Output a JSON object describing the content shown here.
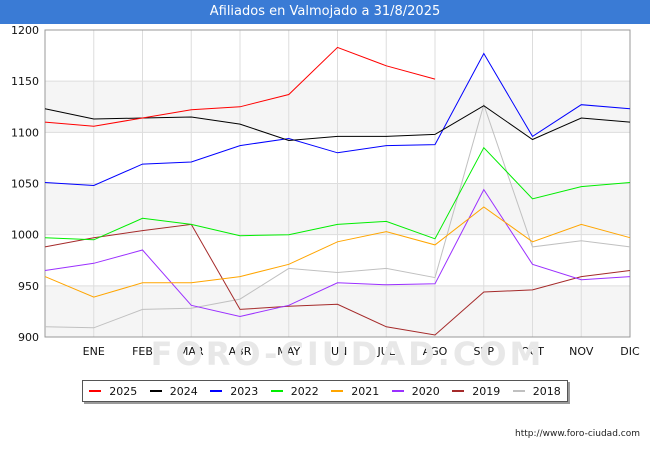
{
  "title": "Afiliados en Valmojado a 31/8/2025",
  "source": "http://www.foro-ciudad.com",
  "watermark": "FORO-CIUDAD.COM",
  "chart_data": {
    "type": "line",
    "categories": [
      "",
      "ENE",
      "FEB",
      "MAR",
      "ABR",
      "MAY",
      "JUN",
      "JUL",
      "AGO",
      "SEP",
      "OCT",
      "NOV",
      "DIC"
    ],
    "ylim": [
      900,
      1200
    ],
    "yticks": [
      900,
      950,
      1000,
      1050,
      1100,
      1150,
      1200
    ],
    "grid": true,
    "legend_position": "bottom",
    "series": [
      {
        "name": "2025",
        "color": "#ff0000",
        "values": [
          1110,
          1106,
          1114,
          1122,
          1125,
          1137,
          1183,
          1165,
          1152,
          null,
          null,
          null,
          null
        ]
      },
      {
        "name": "2024",
        "color": "#000000",
        "values": [
          1123,
          1113,
          1114,
          1115,
          1108,
          1092,
          1096,
          1096,
          1098,
          1126,
          1093,
          1114,
          1110
        ]
      },
      {
        "name": "2023",
        "color": "#0000ff",
        "values": [
          1051,
          1048,
          1069,
          1071,
          1087,
          1094,
          1080,
          1087,
          1088,
          1177,
          1096,
          1127,
          1123
        ]
      },
      {
        "name": "2022",
        "color": "#00ee00",
        "values": [
          997,
          995,
          1016,
          1010,
          999,
          1000,
          1010,
          1013,
          996,
          1085,
          1035,
          1047,
          1051
        ]
      },
      {
        "name": "2021",
        "color": "#ffa500",
        "values": [
          959,
          939,
          953,
          953,
          959,
          971,
          993,
          1003,
          990,
          1027,
          993,
          1010,
          997
        ]
      },
      {
        "name": "2020",
        "color": "#9b30ff",
        "values": [
          965,
          972,
          985,
          931,
          920,
          931,
          953,
          951,
          952,
          1044,
          971,
          956,
          959
        ]
      },
      {
        "name": "2019",
        "color": "#a52a2a",
        "values": [
          988,
          997,
          1004,
          1010,
          927,
          930,
          932,
          910,
          902,
          944,
          946,
          959,
          965
        ]
      },
      {
        "name": "2018",
        "color": "#c0c0c0",
        "values": [
          910,
          909,
          927,
          928,
          937,
          967,
          963,
          967,
          958,
          1127,
          988,
          994,
          988
        ]
      }
    ]
  }
}
